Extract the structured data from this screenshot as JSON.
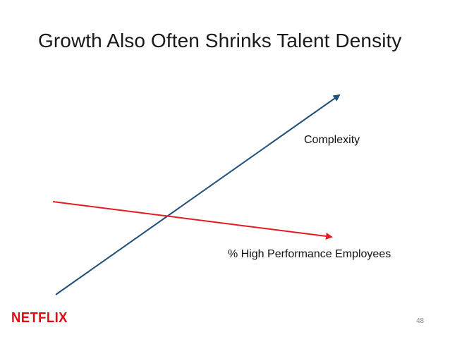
{
  "slide": {
    "title": "Growth Also Often Shrinks Talent Density",
    "page_number": "48"
  },
  "diagram": {
    "lines": [
      {
        "label": "Complexity",
        "color": "#1f4e79",
        "direction": "rising"
      },
      {
        "label": "% High Performance Employees",
        "color": "#e31c23",
        "direction": "falling"
      }
    ]
  },
  "brand": {
    "logo_text": "NETFLIX",
    "logo_color": "#e50914"
  }
}
